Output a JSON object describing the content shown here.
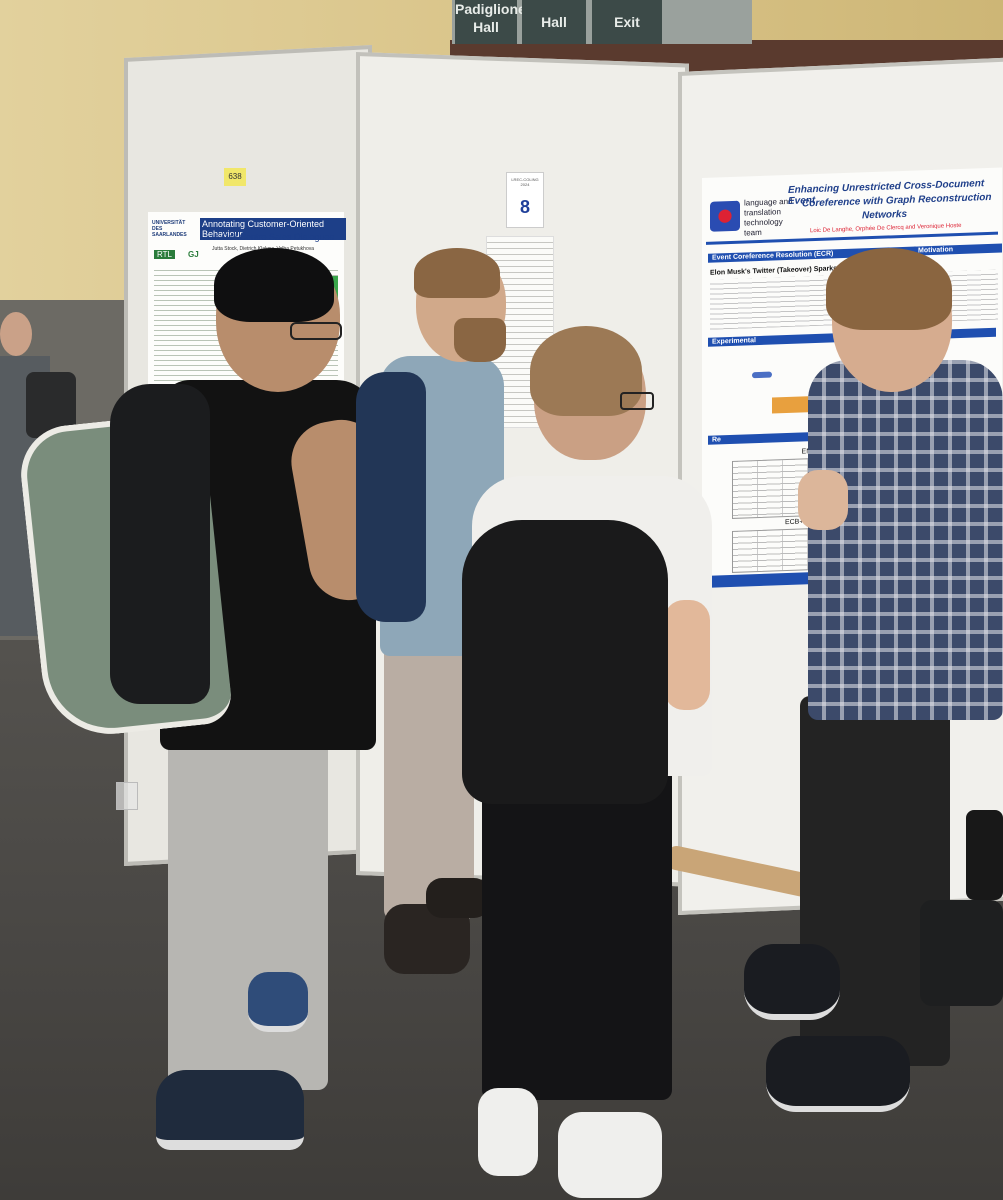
{
  "scene": {
    "description_colors": {
      "wall": "#d9c58e",
      "floor": "#4a4946",
      "board": "#ecebe6",
      "board_frame": "#b9b8b3",
      "accent_blue": "#1f4fb0"
    }
  },
  "signage": {
    "top_labels": [
      "Padiglione Hall",
      "Hall",
      "Exit"
    ]
  },
  "boards": {
    "left_sticky": "638",
    "middle_number": "8",
    "middle_sticker_top": "LREC-COLING 2024"
  },
  "poster_left": {
    "title_line1": "Annotating Customer-Oriented Behaviour",
    "title_line2": "in Call Centre Sales Dialogues",
    "authors": "Jutta Stock, Dietrich Klakow, Volha Petukhova",
    "logo_text": "UNIVERSITÄT DES SAARLANDES",
    "logo2_text": "RTL",
    "logo3_text": "GJ"
  },
  "poster_right": {
    "team_line1": "language and",
    "team_line2": "translation",
    "team_line3": "technology",
    "team_line4": "team",
    "title_line1": "Enhancing Unrestricted Cross-Document Event",
    "title_line2": "Coreference with Graph Reconstruction",
    "title_line3": "Networks",
    "authors": "Loic De Langhe, Orphée De Clercq and Veronique Hoste",
    "section1": "Event Coreference Resolution (ECR)",
    "section1b": "Motivation",
    "example_headline": "Elon Musk's Twitter (Takeover) Sparks Frenzy",
    "section2": "Experimental",
    "section3": "Re",
    "table1_title": "ENCORE Dataset (Dutch)",
    "table2_title": "ECB+ Dataset (English)"
  }
}
